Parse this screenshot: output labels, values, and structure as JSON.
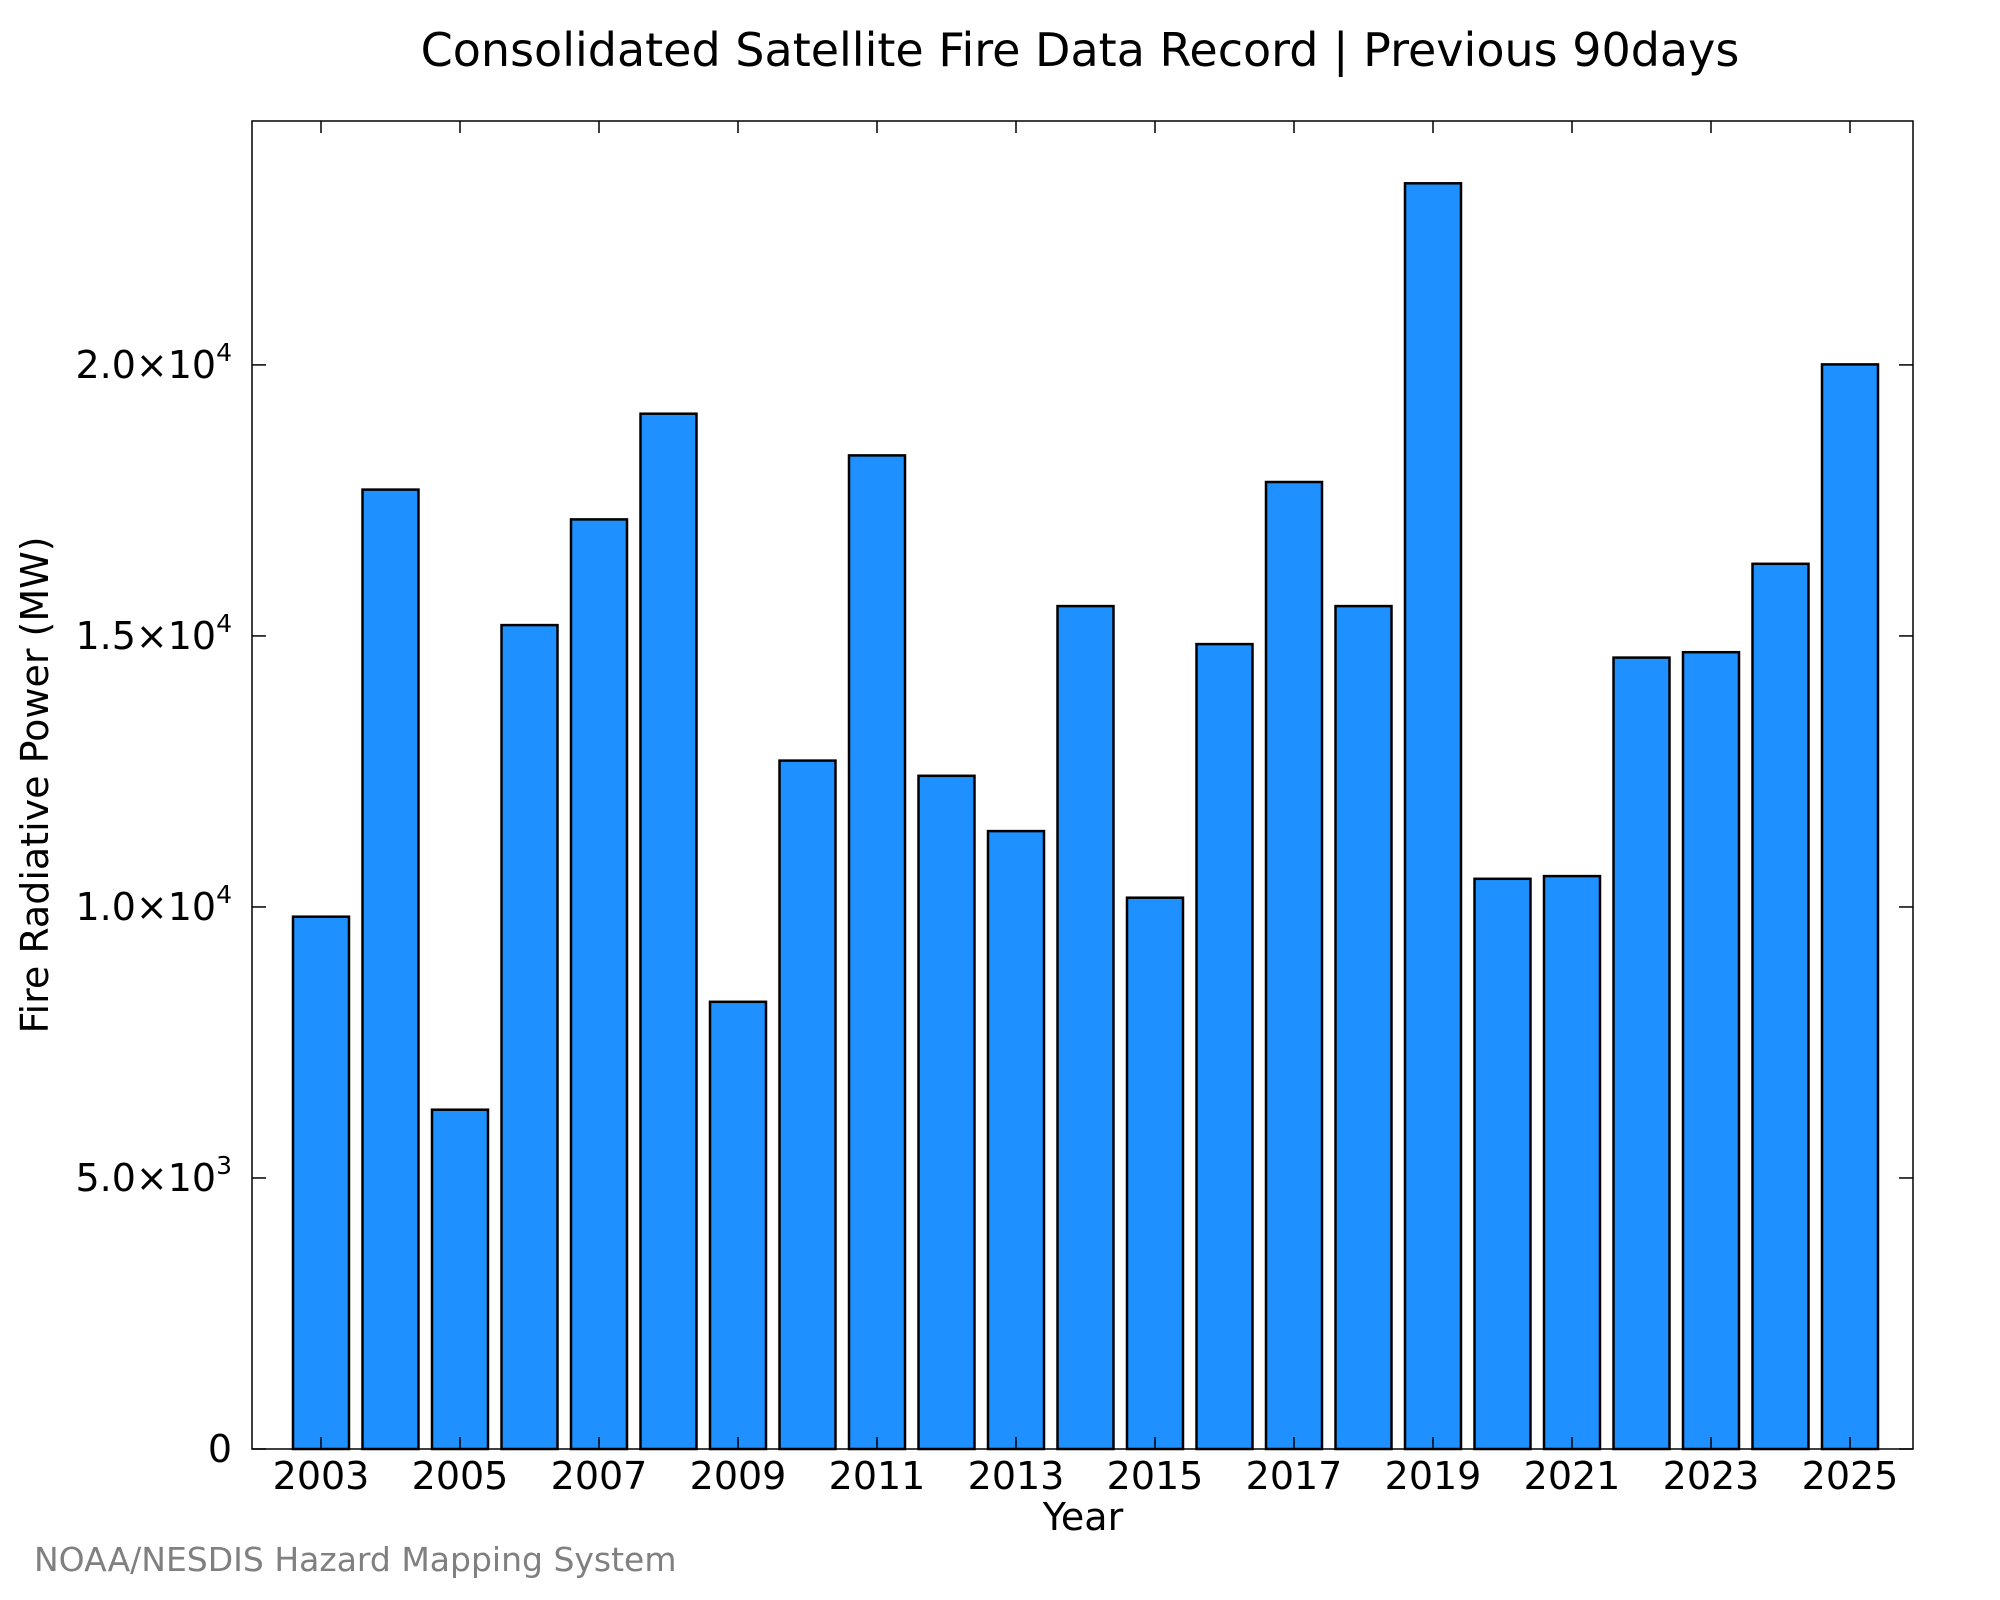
{
  "chart_data": {
    "type": "bar",
    "title": "Consolidated Satellite Fire Data Record | Previous 90days",
    "xlabel": "Year",
    "ylabel": "Fire Radiative Power (MW)",
    "categories": [
      2003,
      2004,
      2005,
      2006,
      2007,
      2008,
      2009,
      2010,
      2011,
      2012,
      2013,
      2014,
      2015,
      2016,
      2017,
      2018,
      2019,
      2020,
      2021,
      2022,
      2023,
      2024,
      2025
    ],
    "values": [
      9820,
      17700,
      6260,
      15200,
      17150,
      19100,
      8250,
      12700,
      18330,
      12420,
      11400,
      15550,
      10170,
      14850,
      17840,
      15550,
      23350,
      10520,
      10570,
      14600,
      14700,
      16330,
      20010
    ],
    "x_tick_labels": [
      "2003",
      "2005",
      "2007",
      "2009",
      "2011",
      "2013",
      "2015",
      "2017",
      "2019",
      "2021",
      "2023",
      "2025"
    ],
    "y_ticks": [
      {
        "value": 0,
        "label": "0",
        "exp": ""
      },
      {
        "value": 5000,
        "label": "5.0×10",
        "exp": "3"
      },
      {
        "value": 10000,
        "label": "1.0×10",
        "exp": "4"
      },
      {
        "value": 15000,
        "label": "1.5×10",
        "exp": "4"
      },
      {
        "value": 20000,
        "label": "2.0×10",
        "exp": "4"
      }
    ],
    "ylim": [
      0,
      24500
    ],
    "bar_color": "#1e90ff",
    "edge_color": "#000000",
    "grid": false,
    "legend": "none"
  },
  "footer": {
    "credit": "NOAA/NESDIS Hazard Mapping System"
  }
}
